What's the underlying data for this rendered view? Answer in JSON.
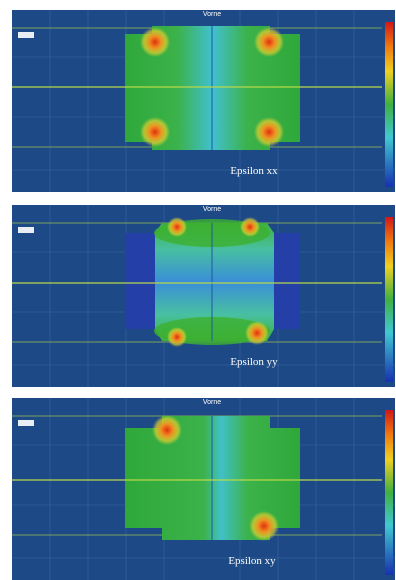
{
  "panels": [
    {
      "header": "Vorne",
      "label": "Epsilon xx"
    },
    {
      "header": "Vorne",
      "label": "Epsilon yy"
    },
    {
      "header": "Vorne",
      "label": "Epsilon xy"
    }
  ]
}
